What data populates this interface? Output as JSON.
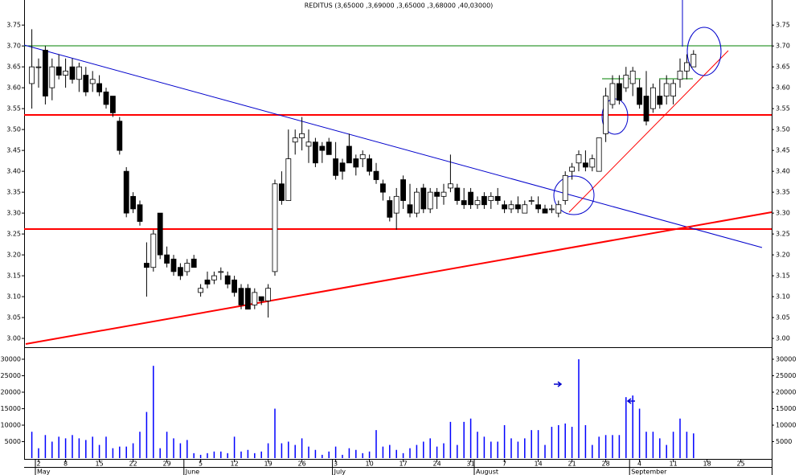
{
  "chart_data": [
    {
      "type": "candlestick",
      "title": "REDITUS (3,65000 ,3,69000 ,3,65000 ,3,68000 ,40,03000)",
      "categories": [
        null,
        "2",
        null,
        null,
        null,
        "8",
        null,
        null,
        null,
        null,
        "15",
        null,
        null,
        null,
        null,
        "22",
        null,
        null,
        null,
        null,
        "29",
        null,
        null,
        null,
        null,
        "5",
        null,
        null,
        null,
        null,
        "12",
        null,
        null,
        null,
        null,
        "19",
        null,
        null,
        null,
        null,
        "26",
        null,
        null,
        null,
        null,
        "3",
        null,
        null,
        null,
        null,
        "10",
        null,
        null,
        null,
        null,
        "17",
        null,
        null,
        null,
        null,
        "24",
        null,
        null,
        null,
        null,
        "31",
        null,
        null,
        null,
        null,
        "7",
        null,
        null,
        null,
        null,
        "14",
        null,
        null,
        null,
        null,
        "21",
        null,
        null,
        null,
        null,
        "28",
        null,
        null,
        null,
        null,
        "4",
        null,
        null,
        null,
        null,
        "11",
        null,
        null,
        null,
        null,
        "18",
        null,
        null,
        null,
        null,
        "25",
        null,
        null,
        null,
        null
      ],
      "month_ticks": [
        {
          "value": 1,
          "label": "May"
        },
        {
          "value": 23,
          "label": "June"
        },
        {
          "value": 45,
          "label": "July"
        },
        {
          "value": 66,
          "label": "August"
        },
        {
          "value": 89,
          "label": "September"
        }
      ],
      "open": [
        3.61,
        3.65,
        3.69,
        3.6,
        3.65,
        3.63,
        3.65,
        3.62,
        3.63,
        3.61,
        3.61,
        3.59,
        3.58,
        3.52,
        3.4,
        3.34,
        3.32,
        3.18,
        3.17,
        3.3,
        3.2,
        3.19,
        3.17,
        3.16,
        3.19,
        3.11,
        3.14,
        3.14,
        3.16,
        3.15,
        3.14,
        3.12,
        3.12,
        3.08,
        3.1,
        3.09,
        3.16,
        3.37,
        3.33,
        3.47,
        3.48,
        3.46,
        3.47,
        3.46,
        3.47,
        3.43,
        3.42,
        3.46,
        3.43,
        3.43,
        3.43,
        3.4,
        3.37,
        3.33,
        3.3,
        3.38,
        3.32,
        3.3,
        3.36,
        3.31,
        3.35,
        3.34,
        3.36,
        3.36,
        3.33,
        3.35,
        3.32,
        3.34,
        3.33,
        3.34,
        3.32,
        3.31,
        3.32,
        3.3,
        3.33,
        3.32,
        3.31,
        3.31,
        3.3,
        3.33,
        3.4,
        3.42,
        3.42,
        3.41,
        3.4,
        3.49,
        3.56,
        3.61,
        3.6,
        3.61,
        3.6,
        3.58,
        3.55,
        3.58,
        3.58,
        3.58,
        3.62,
        3.64,
        3.65,
        null,
        null,
        null,
        null,
        null,
        null,
        null,
        null,
        null,
        null,
        null
      ],
      "high": [
        3.74,
        3.67,
        3.7,
        3.67,
        3.68,
        3.67,
        3.67,
        3.66,
        3.65,
        3.64,
        3.63,
        3.6,
        3.58,
        3.53,
        3.41,
        3.35,
        3.33,
        3.23,
        3.26,
        3.3,
        3.22,
        3.2,
        3.18,
        3.19,
        3.2,
        3.13,
        3.16,
        3.16,
        3.17,
        3.16,
        3.15,
        3.13,
        3.13,
        3.12,
        3.1,
        3.13,
        3.38,
        3.4,
        3.5,
        3.5,
        3.53,
        3.5,
        3.48,
        3.47,
        3.48,
        3.47,
        3.43,
        3.49,
        3.44,
        3.45,
        3.44,
        3.42,
        3.38,
        3.34,
        3.36,
        3.39,
        3.37,
        3.36,
        3.37,
        3.36,
        3.36,
        3.37,
        3.44,
        3.37,
        3.36,
        3.36,
        3.34,
        3.35,
        3.35,
        3.36,
        3.33,
        3.33,
        3.34,
        3.33,
        3.34,
        3.34,
        3.32,
        3.32,
        3.33,
        3.4,
        3.42,
        3.45,
        3.45,
        3.44,
        3.48,
        3.6,
        3.63,
        3.63,
        3.65,
        3.65,
        3.62,
        3.64,
        3.61,
        3.62,
        3.63,
        3.62,
        3.67,
        3.68,
        3.69,
        null,
        null,
        null,
        null,
        null,
        null,
        null,
        null,
        null,
        null,
        null
      ],
      "low": [
        3.55,
        3.6,
        3.56,
        3.57,
        3.62,
        3.6,
        3.61,
        3.59,
        3.58,
        3.59,
        3.58,
        3.55,
        3.53,
        3.44,
        3.29,
        3.3,
        3.27,
        3.1,
        3.16,
        3.19,
        3.17,
        3.15,
        3.14,
        3.15,
        3.17,
        3.1,
        3.12,
        3.13,
        3.14,
        3.12,
        3.1,
        3.07,
        3.07,
        3.07,
        3.08,
        3.05,
        3.15,
        3.32,
        3.33,
        3.44,
        3.45,
        3.42,
        3.41,
        3.42,
        3.44,
        3.38,
        3.38,
        3.42,
        3.39,
        3.41,
        3.39,
        3.37,
        3.33,
        3.28,
        3.26,
        3.31,
        3.29,
        3.29,
        3.3,
        3.3,
        3.31,
        3.32,
        3.35,
        3.32,
        3.31,
        3.31,
        3.31,
        3.31,
        3.31,
        3.32,
        3.3,
        3.3,
        3.3,
        3.3,
        3.32,
        3.3,
        3.3,
        3.3,
        3.29,
        3.32,
        3.38,
        3.4,
        3.4,
        3.4,
        3.4,
        3.47,
        3.55,
        3.56,
        3.59,
        3.58,
        3.55,
        3.51,
        3.54,
        3.55,
        3.56,
        3.56,
        3.6,
        3.62,
        3.65,
        null,
        null,
        null,
        null,
        null,
        null,
        null,
        null,
        null,
        null,
        null
      ],
      "close": [
        3.65,
        3.65,
        3.58,
        3.65,
        3.63,
        3.64,
        3.62,
        3.65,
        3.59,
        3.62,
        3.59,
        3.56,
        3.54,
        3.45,
        3.3,
        3.31,
        3.28,
        3.17,
        3.25,
        3.2,
        3.18,
        3.16,
        3.15,
        3.18,
        3.17,
        3.12,
        3.13,
        3.15,
        3.16,
        3.13,
        3.11,
        3.08,
        3.07,
        3.11,
        3.09,
        3.12,
        3.37,
        3.33,
        3.43,
        3.48,
        3.49,
        3.47,
        3.42,
        3.45,
        3.44,
        3.39,
        3.4,
        3.42,
        3.41,
        3.44,
        3.4,
        3.38,
        3.35,
        3.29,
        3.34,
        3.33,
        3.3,
        3.35,
        3.31,
        3.35,
        3.34,
        3.35,
        3.37,
        3.33,
        3.32,
        3.32,
        3.33,
        3.32,
        3.34,
        3.33,
        3.31,
        3.32,
        3.31,
        3.32,
        3.33,
        3.31,
        3.3,
        3.31,
        3.32,
        3.39,
        3.41,
        3.44,
        3.41,
        3.43,
        3.48,
        3.58,
        3.61,
        3.57,
        3.63,
        3.64,
        3.56,
        3.52,
        3.6,
        3.56,
        3.61,
        3.61,
        3.64,
        3.66,
        3.68,
        null,
        null,
        null,
        null,
        null,
        null,
        null,
        null,
        null,
        null,
        null
      ],
      "ylim": [
        2.979,
        3.81
      ],
      "yticks": [
        {
          "value": 3.0,
          "label": "3.00"
        },
        {
          "value": 3.05,
          "label": "3.05"
        },
        {
          "value": 3.1,
          "label": "3.10"
        },
        {
          "value": 3.15,
          "label": "3.15"
        },
        {
          "value": 3.2,
          "label": "3.20"
        },
        {
          "value": 3.25,
          "label": "3.25"
        },
        {
          "value": 3.3,
          "label": "3.30"
        },
        {
          "value": 3.35,
          "label": "3.35"
        },
        {
          "value": 3.4,
          "label": "3.40"
        },
        {
          "value": 3.45,
          "label": "3.45"
        },
        {
          "value": 3.5,
          "label": "3.50"
        },
        {
          "value": 3.55,
          "label": "3.55"
        },
        {
          "value": 3.6,
          "label": "3.60"
        },
        {
          "value": 3.65,
          "label": "3.65"
        },
        {
          "value": 3.7,
          "label": "3.70"
        },
        {
          "value": 3.75,
          "label": "3.75"
        }
      ]
    },
    {
      "type": "bar",
      "color": "#0000ff",
      "values": [
        8000,
        3000,
        7000,
        5000,
        6500,
        6000,
        7000,
        6000,
        5500,
        6500,
        4000,
        6500,
        3000,
        3500,
        3500,
        4500,
        8000,
        14000,
        28000,
        3000,
        8000,
        6000,
        4500,
        5500,
        1500,
        1000,
        1500,
        2000,
        2000,
        1500,
        6500,
        2000,
        2500,
        1500,
        2000,
        4500,
        15000,
        4500,
        5000,
        4000,
        6000,
        3500,
        2500,
        1000,
        2000,
        3500,
        1000,
        3000,
        2500,
        1500,
        2000,
        8500,
        3500,
        4000,
        2500,
        1500,
        3000,
        4000,
        5000,
        6000,
        3500,
        4500,
        11000,
        4000,
        11000,
        12000,
        8000,
        6500,
        5000,
        5000,
        10000,
        6000,
        5000,
        6000,
        8500,
        8500,
        4000,
        9500,
        10000,
        10500,
        9500,
        30000,
        10000,
        4000,
        6500,
        7000,
        7000,
        7000,
        18500,
        19000,
        15000,
        8000,
        8000,
        6000,
        4000,
        8000,
        12000,
        8000,
        7500,
        null,
        null,
        null,
        null,
        null,
        null,
        null,
        null,
        null,
        null,
        null
      ],
      "ylim": [
        0,
        33650
      ],
      "yticks": [
        5000,
        10000,
        15000,
        20000,
        25000,
        30000
      ]
    }
  ]
}
